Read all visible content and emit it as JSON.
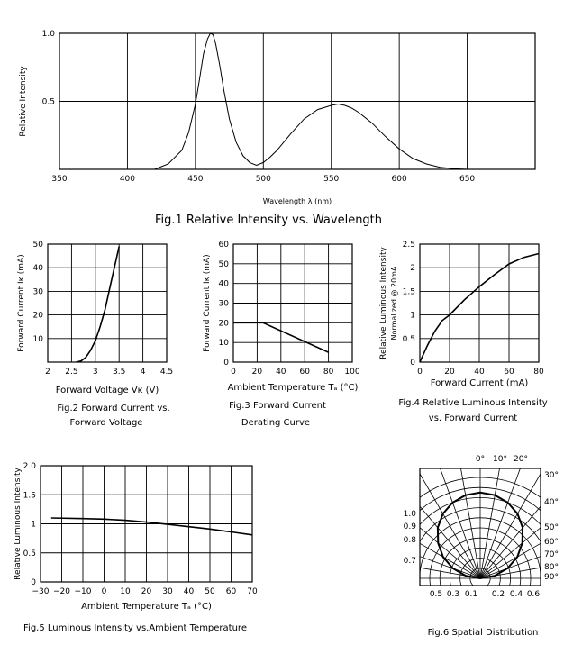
{
  "chart_data": [
    {
      "id": "fig1",
      "type": "line",
      "caption": "Fig.1 Relative Intensity vs. Wavelength",
      "xlabel": "Wavelength λ (nm)",
      "ylabel": "Relative Intensity",
      "xlim": [
        350,
        700
      ],
      "ylim": [
        0,
        1.0
      ],
      "xticks": [
        350,
        400,
        450,
        500,
        550,
        600,
        650
      ],
      "yticks": [
        0.5,
        1.0
      ],
      "ytick_labels": [
        "0.5",
        "1.0"
      ],
      "grid": true,
      "series": [
        {
          "x": [
            420,
            430,
            440,
            445,
            450,
            453,
            456,
            459,
            461,
            463,
            465,
            468,
            471,
            475,
            480,
            485,
            490,
            495,
            500,
            505,
            510,
            520,
            530,
            540,
            550,
            555,
            560,
            565,
            570,
            580,
            590,
            600,
            610,
            620,
            630,
            640,
            650
          ],
          "y": [
            0.0,
            0.04,
            0.14,
            0.27,
            0.48,
            0.66,
            0.85,
            0.96,
            1.0,
            0.99,
            0.92,
            0.76,
            0.58,
            0.37,
            0.2,
            0.1,
            0.05,
            0.03,
            0.05,
            0.09,
            0.14,
            0.26,
            0.37,
            0.44,
            0.47,
            0.48,
            0.47,
            0.45,
            0.42,
            0.34,
            0.24,
            0.15,
            0.08,
            0.04,
            0.015,
            0.005,
            0.0
          ]
        }
      ]
    },
    {
      "id": "fig2",
      "type": "line",
      "caption_lines": [
        "Fig.2 Forward Current vs.",
        "Forward Voltage"
      ],
      "xlabel": "Forward Voltage Vᴋ (V)",
      "ylabel": "Forward Current Iᴋ (mA)",
      "xlim": [
        2.0,
        4.5
      ],
      "ylim": [
        0,
        50
      ],
      "xticks": [
        2.0,
        2.5,
        3.0,
        3.5,
        4.0,
        4.5
      ],
      "yticks": [
        10,
        20,
        30,
        40,
        50
      ],
      "grid": true,
      "series": [
        {
          "x": [
            2.6,
            2.7,
            2.8,
            2.9,
            3.0,
            3.1,
            3.2,
            3.3,
            3.4,
            3.5
          ],
          "y": [
            0,
            0.5,
            2,
            5,
            9,
            15,
            22,
            31,
            40,
            49
          ]
        }
      ]
    },
    {
      "id": "fig3",
      "type": "line",
      "caption_lines": [
        "Fig.3 Forward Current",
        "Derating Curve"
      ],
      "xlabel": "Ambient Temperature Tₐ (°C)",
      "ylabel": "Forward Current Iᴋ (mA)",
      "xlim": [
        0,
        100
      ],
      "ylim": [
        0,
        60
      ],
      "xticks": [
        0,
        20,
        40,
        60,
        80,
        100
      ],
      "yticks": [
        0,
        10,
        20,
        30,
        40,
        50,
        60
      ],
      "grid": true,
      "series": [
        {
          "x": [
            0,
            25,
            80
          ],
          "y": [
            20,
            20,
            5
          ]
        }
      ]
    },
    {
      "id": "fig4",
      "type": "line",
      "caption_lines": [
        "Fig.4 Relative Luminous Intensity",
        "vs. Forward Current"
      ],
      "xlabel": "Forward Current (mA)",
      "ylabel": "Relative Luminous Intensity",
      "ylabel2": "Normalized @ 20mA",
      "xlim": [
        0,
        80
      ],
      "ylim": [
        0,
        2.5
      ],
      "xticks": [
        0,
        20,
        40,
        60,
        80
      ],
      "yticks": [
        0,
        0.5,
        1.0,
        1.5,
        2.0,
        2.5
      ],
      "grid": true,
      "series": [
        {
          "x": [
            0,
            5,
            10,
            15,
            20,
            30,
            40,
            50,
            60,
            70,
            80
          ],
          "y": [
            0,
            0.35,
            0.65,
            0.88,
            1.0,
            1.32,
            1.6,
            1.85,
            2.08,
            2.22,
            2.3
          ]
        }
      ]
    },
    {
      "id": "fig5",
      "type": "line",
      "caption": "Fig.5 Luminous Intensity vs.Ambient Temperature",
      "xlabel": "Ambient Temperature Tₐ (°C)",
      "ylabel": "Relative Luminous Intensity",
      "xlim": [
        -30,
        70
      ],
      "ylim": [
        0,
        2.0
      ],
      "xticks": [
        -30,
        -20,
        -10,
        0,
        10,
        20,
        30,
        40,
        50,
        60,
        70
      ],
      "xtick_labels": [
        "−30",
        "−20",
        "−10",
        "0",
        "10",
        "20",
        "30",
        "40",
        "50",
        "60",
        "70"
      ],
      "yticks": [
        0,
        0.5,
        1.0,
        1.5,
        2.0
      ],
      "ytick_labels": [
        "0",
        "0.5",
        "1",
        "1.5",
        "2.0"
      ],
      "grid": true,
      "series": [
        {
          "x": [
            -25,
            -10,
            0,
            10,
            20,
            30,
            40,
            50,
            60,
            70
          ],
          "y": [
            1.1,
            1.09,
            1.08,
            1.06,
            1.03,
            0.99,
            0.95,
            0.91,
            0.86,
            0.81
          ]
        }
      ]
    },
    {
      "id": "fig6",
      "type": "polar",
      "caption": "Fig.6 Spatial Distribution",
      "angle_labels_top": [
        "0°",
        "10°",
        "20°"
      ],
      "angle_labels_right": [
        "30°",
        "40°",
        "50°",
        "60°",
        "70°",
        "80°",
        "90°"
      ],
      "radial_labels_left": [
        "1.0",
        "0.9",
        "0.8",
        "0.7"
      ],
      "bottom_labels": [
        "0.5",
        "0.3",
        "0.1",
        "0.2",
        "0.4",
        "0.6"
      ],
      "series": [
        {
          "angle_deg": [
            -90,
            -80,
            -70,
            -60,
            -50,
            -40,
            -30,
            -20,
            -10,
            0,
            10,
            20,
            30,
            40,
            50,
            60,
            70,
            80,
            90
          ],
          "r": [
            0.0,
            0.17,
            0.34,
            0.5,
            0.64,
            0.77,
            0.87,
            0.94,
            0.985,
            1.0,
            0.985,
            0.94,
            0.87,
            0.77,
            0.64,
            0.5,
            0.34,
            0.17,
            0.0
          ]
        }
      ]
    }
  ]
}
